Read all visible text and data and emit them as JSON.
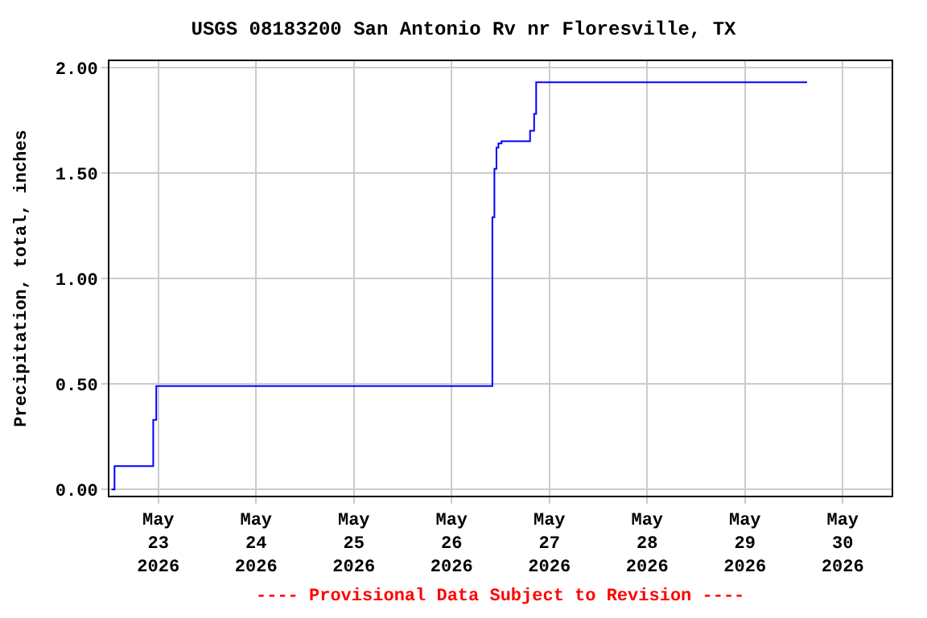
{
  "chart_data": {
    "type": "step",
    "title": "USGS 08183200 San Antonio Rv nr Floresville, TX",
    "ylabel": "Precipitation, total, inches",
    "annotations": [
      "---- Provisional Data Subject to Revision ----"
    ],
    "x": [
      "2026-05-22T12:30",
      "2026-05-22T13:15",
      "2026-05-22T22:45",
      "2026-05-22T23:30",
      "2026-05-26T10:00",
      "2026-05-26T10:30",
      "2026-05-26T11:00",
      "2026-05-26T11:30",
      "2026-05-26T12:15",
      "2026-05-26T19:15",
      "2026-05-26T20:15",
      "2026-05-26T20:45",
      "2026-05-29T15:15"
    ],
    "series": [
      {
        "color": "#0000ff",
        "values": [
          0.0,
          0.11,
          0.33,
          0.49,
          1.29,
          1.52,
          1.62,
          1.64,
          1.65,
          1.7,
          1.78,
          1.93,
          1.93
        ]
      }
    ],
    "xlim": [
      "2026-05-22T12:00",
      "2026-05-30T12:00"
    ],
    "xticks": [
      {
        "value": "2026-05-23",
        "label": "May\n23\n2026"
      },
      {
        "value": "2026-05-24",
        "label": "May\n24\n2026"
      },
      {
        "value": "2026-05-25",
        "label": "May\n25\n2026"
      },
      {
        "value": "2026-05-26",
        "label": "May\n26\n2026"
      },
      {
        "value": "2026-05-27",
        "label": "May\n27\n2026"
      },
      {
        "value": "2026-05-28",
        "label": "May\n28\n2026"
      },
      {
        "value": "2026-05-29",
        "label": "May\n29\n2026"
      },
      {
        "value": "2026-05-30",
        "label": "May\n30\n2026"
      }
    ],
    "ylim": [
      -0.03,
      2.03
    ],
    "yticks": [
      {
        "value": 0,
        "label": "0.00"
      },
      {
        "value": 0.5,
        "label": "0.50"
      },
      {
        "value": 1,
        "label": "1.00"
      },
      {
        "value": 1.5,
        "label": "1.50"
      },
      {
        "value": 2,
        "label": "2.00"
      }
    ],
    "grid": true,
    "marker": "none",
    "line_style": "solid"
  }
}
